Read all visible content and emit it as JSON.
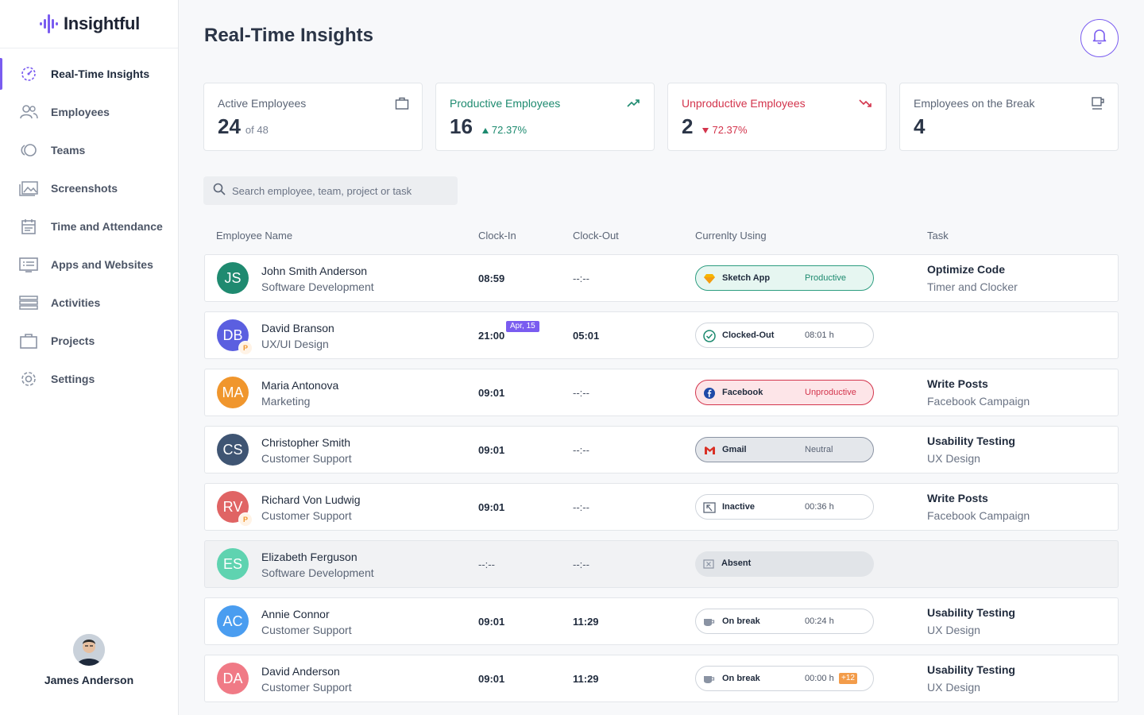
{
  "brand": {
    "name": "Insightful",
    "accent": "#7a5cf0"
  },
  "sidebar": {
    "items": [
      {
        "label": "Real-Time Insights",
        "icon": "realtime-icon",
        "active": true
      },
      {
        "label": "Employees",
        "icon": "employees-icon"
      },
      {
        "label": "Teams",
        "icon": "teams-icon"
      },
      {
        "label": "Screenshots",
        "icon": "screenshots-icon"
      },
      {
        "label": "Time and Attendance",
        "icon": "calendar-icon"
      },
      {
        "label": "Apps and Websites",
        "icon": "apps-icon"
      },
      {
        "label": "Activities",
        "icon": "activities-icon"
      },
      {
        "label": "Projects",
        "icon": "briefcase-icon"
      },
      {
        "label": "Settings",
        "icon": "gear-icon"
      }
    ],
    "user": {
      "name": "James Anderson"
    }
  },
  "header": {
    "title": "Real-Time Insights"
  },
  "cards": [
    {
      "title": "Active Employees",
      "value": "24",
      "sub": "of 48",
      "icon": "briefcase-icon"
    },
    {
      "title": "Productive Employees",
      "value": "16",
      "sub": "72.37%",
      "icon": "trend-up-icon"
    },
    {
      "title": "Unproductive Employees",
      "value": "2",
      "sub": "72.37%",
      "icon": "trend-down-icon"
    },
    {
      "title": "Employees on the Break",
      "value": "4",
      "sub": "",
      "icon": "coffee-icon"
    }
  ],
  "search": {
    "placeholder": "Search employee, team, project or task"
  },
  "table": {
    "headers": {
      "name": "Employee Name",
      "clockin": "Clock-In",
      "clockout": "Clock-Out",
      "using": "Currenlty Using",
      "task": "Task"
    },
    "rows": [
      {
        "initials": "JS",
        "color": "#1f8a70",
        "name": "John Smith Anderson",
        "team": "Software Development",
        "clockin": "08:59",
        "clockout": "--:--",
        "app": "Sketch App",
        "status": "Productive",
        "task": "Optimize Code",
        "project": "Timer and Clocker"
      },
      {
        "initials": "DB",
        "color": "#5b5fe0",
        "badge": "P",
        "name": "David Branson",
        "team": "UX/UI Design",
        "clockin": "21:00",
        "date": "Apr, 15",
        "clockout": "05:01",
        "app": "Clocked-Out",
        "time": "08:01 h",
        "task": "",
        "project": ""
      },
      {
        "initials": "MA",
        "color": "#f0962d",
        "name": "Maria Antonova",
        "team": "Marketing",
        "clockin": "09:01",
        "clockout": "--:--",
        "app": "Facebook",
        "status": "Unproductive",
        "task": "Write Posts",
        "project": "Facebook Campaign"
      },
      {
        "initials": "CS",
        "color": "#3f5573",
        "name": "Christopher Smith",
        "team": "Customer Support",
        "clockin": "09:01",
        "clockout": "--:--",
        "app": "Gmail",
        "status": "Neutral",
        "task": "Usability Testing",
        "project": "UX Design"
      },
      {
        "initials": "RV",
        "color": "#e06464",
        "badge": "P",
        "name": "Richard Von Ludwig",
        "team": "Customer Support",
        "clockin": "09:01",
        "clockout": "--:--",
        "app": "Inactive",
        "time": "00:36 h",
        "task": "Write Posts",
        "project": "Facebook Campaign"
      },
      {
        "initials": "ES",
        "color": "#5fd3b0",
        "name": "Elizabeth Ferguson",
        "team": "Software Development",
        "clockin": "--:--",
        "clockout": "--:--",
        "app": "Absent",
        "task": "",
        "project": ""
      },
      {
        "initials": "AC",
        "color": "#4a9df0",
        "name": "Annie Connor",
        "team": "Customer Support",
        "clockin": "09:01",
        "clockout": "11:29",
        "app": "On break",
        "time": "00:24 h",
        "task": "Usability Testing",
        "project": "UX Design"
      },
      {
        "initials": "DA",
        "color": "#f07a86",
        "name": "David Anderson",
        "team": "Customer Support",
        "clockin": "09:01",
        "clockout": "11:29",
        "app": "On break",
        "time": "00:00 h",
        "extra": "+12",
        "task": "Usability Testing",
        "project": "UX Design"
      }
    ]
  }
}
